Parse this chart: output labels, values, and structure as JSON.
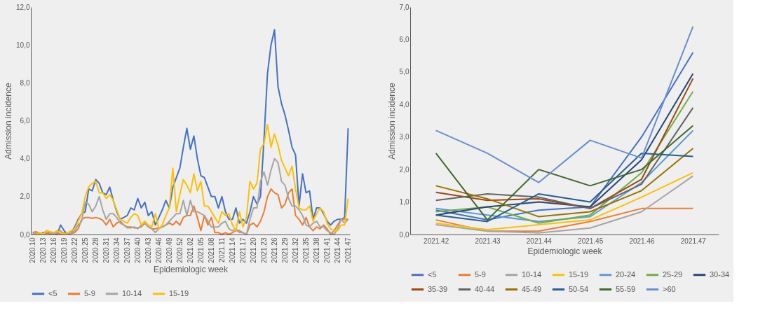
{
  "chart_data": [
    {
      "type": "line",
      "xlabel": "Epidemiologic week",
      "ylabel": "Admission incidence",
      "categories": [
        "2020.10",
        null,
        null,
        "2020.13",
        null,
        null,
        "2020.16",
        null,
        null,
        "2020.19",
        null,
        null,
        "2020.22",
        null,
        null,
        "2020.25",
        null,
        null,
        "2020.28",
        null,
        null,
        "2020.31",
        null,
        null,
        "2020.34",
        null,
        null,
        "2020.37",
        null,
        null,
        "2020.40",
        null,
        null,
        "2020.43",
        null,
        null,
        "2020.46",
        null,
        null,
        "2020.49",
        null,
        null,
        "2020.52",
        null,
        null,
        "2021.02",
        null,
        null,
        "2021.05",
        null,
        null,
        "2021.08",
        null,
        null,
        "2021.11",
        null,
        null,
        "2021.14",
        null,
        null,
        "2021.17",
        null,
        null,
        "2021.20",
        null,
        null,
        "2021.23",
        null,
        null,
        "2021.26",
        null,
        null,
        "2021.29",
        null,
        null,
        "2021.32",
        null,
        null,
        "2021.35",
        null,
        null,
        "2021.38",
        null,
        null,
        "2021.41",
        null,
        null,
        "2021.44",
        null,
        null,
        "2021.47"
      ],
      "series": [
        {
          "name": "<5",
          "color": "#4472c4",
          "values": [
            0.0,
            0.05,
            0.0,
            0.1,
            0.05,
            0.1,
            0.1,
            0.0,
            0.5,
            0.2,
            0.0,
            0.1,
            0.4,
            0.8,
            1.1,
            1.2,
            2.4,
            2.3,
            2.9,
            2.7,
            2.2,
            2.1,
            2.5,
            1.8,
            1.2,
            0.8,
            0.9,
            1.0,
            1.4,
            1.3,
            1.9,
            1.4,
            1.7,
            1.0,
            1.2,
            0.5,
            0.9,
            1.3,
            1.8,
            1.4,
            2.5,
            3.0,
            3.5,
            4.6,
            5.6,
            4.5,
            5.2,
            4.0,
            3.1,
            3.0,
            2.5,
            2.0,
            2.0,
            1.4,
            2.0,
            1.2,
            0.8,
            0.8,
            1.4,
            0.6,
            0.8,
            0.6,
            1.2,
            2.0,
            1.6,
            2.0,
            5.0,
            8.5,
            10.0,
            10.8,
            7.8,
            6.9,
            6.3,
            5.5,
            4.6,
            4.2,
            1.5,
            3.2,
            2.2,
            2.3,
            0.8,
            1.4,
            1.4,
            1.1,
            0.7,
            0.5,
            0.7,
            0.8,
            0.8,
            0.9,
            5.6
          ]
        },
        {
          "name": "5-9",
          "color": "#ed7d31",
          "values": [
            0.1,
            0.15,
            0.05,
            0.0,
            0.1,
            0.0,
            0.05,
            0.1,
            0.0,
            0.1,
            0.0,
            0.05,
            0.1,
            0.3,
            0.8,
            0.9,
            0.9,
            0.85,
            0.9,
            0.85,
            0.75,
            0.5,
            0.8,
            0.4,
            0.6,
            0.7,
            0.5,
            0.4,
            0.4,
            0.35,
            0.35,
            0.4,
            0.6,
            0.4,
            0.3,
            0.3,
            0.35,
            0.4,
            0.5,
            0.6,
            0.5,
            0.7,
            0.5,
            0.9,
            1.0,
            1.0,
            1.5,
            0.9,
            0.2,
            1.0,
            0.5,
            0.9,
            0.1,
            0.1,
            0.0,
            0.1,
            0.0,
            0.1,
            0.2,
            0.2,
            0.1,
            0.0,
            0.5,
            0.6,
            0.4,
            0.7,
            1.2,
            2.0,
            2.4,
            2.2,
            2.1,
            1.4,
            1.6,
            2.2,
            2.4,
            1.0,
            0.8,
            0.5,
            0.9,
            0.4,
            0.2,
            0.4,
            0.3,
            0.5,
            0.3,
            0.0,
            0.2,
            0.5,
            0.8,
            0.8,
            0.8
          ]
        },
        {
          "name": "10-14",
          "color": "#a5a5a5",
          "values": [
            0.0,
            0.1,
            0.0,
            0.05,
            0.2,
            0.1,
            0.0,
            0.1,
            0.2,
            0.0,
            0.0,
            0.1,
            0.2,
            0.5,
            0.7,
            1.7,
            1.6,
            1.2,
            1.5,
            2.0,
            1.3,
            0.8,
            1.1,
            1.1,
            0.9,
            0.6,
            0.5,
            0.35,
            0.35,
            0.4,
            0.3,
            0.5,
            0.6,
            0.4,
            0.3,
            0.1,
            0.3,
            0.4,
            0.5,
            0.7,
            0.9,
            1.1,
            1.1,
            1.8,
            1.0,
            1.8,
            1.2,
            1.2,
            1.1,
            1.0,
            0.7,
            0.4,
            0.4,
            0.4,
            0.6,
            0.7,
            0.3,
            0.2,
            0.3,
            0.1,
            0.1,
            0.0,
            0.8,
            1.4,
            1.4,
            2.8,
            3.3,
            2.6,
            3.4,
            4.0,
            3.8,
            2.8,
            2.6,
            1.9,
            1.5,
            1.5,
            1.3,
            1.0,
            0.5,
            0.4,
            0.6,
            0.7,
            0.4,
            0.4,
            0.2,
            0.1,
            0.0,
            0.3,
            0.8,
            0.6,
            0.8
          ]
        },
        {
          "name": "15-19",
          "color": "#ffc000",
          "values": [
            0.0,
            0.0,
            0.1,
            0.0,
            0.2,
            0.15,
            0.1,
            0.2,
            0.1,
            0.0,
            0.1,
            0.2,
            0.3,
            0.7,
            1.1,
            2.0,
            2.5,
            2.7,
            2.8,
            2.2,
            2.2,
            1.9,
            2.1,
            1.8,
            1.3,
            0.8,
            0.7,
            0.6,
            0.9,
            1.1,
            1.0,
            0.5,
            0.7,
            0.5,
            0.4,
            1.1,
            0.3,
            0.5,
            1.0,
            1.4,
            3.5,
            1.2,
            2.1,
            2.9,
            2.6,
            2.2,
            3.2,
            2.3,
            2.8,
            1.5,
            1.5,
            1.2,
            0.9,
            0.6,
            1.2,
            1.0,
            1.1,
            0.5,
            0.2,
            1.2,
            0.4,
            0.9,
            2.8,
            2.4,
            2.7,
            4.5,
            4.8,
            5.8,
            4.6,
            5.3,
            4.7,
            3.9,
            3.5,
            3.1,
            3.6,
            2.4,
            1.4,
            1.3,
            1.3,
            1.5,
            0.7,
            1.1,
            1.4,
            1.2,
            0.6,
            0.3,
            0.2,
            0.2,
            0.5,
            0.5,
            1.9
          ]
        }
      ],
      "ylim": [
        0,
        12
      ],
      "yticks": [
        {
          "value": 0,
          "label": "0,0"
        },
        {
          "value": 2,
          "label": "2,0"
        },
        {
          "value": 4,
          "label": "4,0"
        },
        {
          "value": 6,
          "label": "6,0"
        },
        {
          "value": 8,
          "label": "8,0"
        },
        {
          "value": 10,
          "label": "10,0"
        },
        {
          "value": 12,
          "label": "12,0"
        }
      ],
      "grid": false,
      "legend": "bottom"
    },
    {
      "type": "line",
      "xlabel": "Epidemiologic week",
      "ylabel": "Admission incidence",
      "categories": [
        "2021.42",
        "2021.43",
        "2021.44",
        "2021.45",
        "2021.46",
        "2021.47"
      ],
      "series": [
        {
          "name": "<5",
          "color": "#4472c4",
          "values": [
            0.75,
            0.45,
            0.75,
            0.85,
            3.0,
            5.6
          ]
        },
        {
          "name": "5-9",
          "color": "#ed7d31",
          "values": [
            0.45,
            0.1,
            0.1,
            0.4,
            0.8,
            0.8
          ]
        },
        {
          "name": "10-14",
          "color": "#a5a5a5",
          "values": [
            0.3,
            0.1,
            0.05,
            0.2,
            0.7,
            1.8
          ]
        },
        {
          "name": "15-19",
          "color": "#ffc000",
          "values": [
            0.35,
            0.15,
            0.3,
            0.45,
            1.15,
            1.9
          ]
        },
        {
          "name": "20-24",
          "color": "#5b9bd5",
          "values": [
            0.8,
            0.6,
            0.4,
            0.55,
            1.6,
            3.2
          ]
        },
        {
          "name": "25-29",
          "color": "#70ad47",
          "values": [
            0.7,
            0.85,
            0.35,
            0.6,
            1.9,
            4.4
          ]
        },
        {
          "name": "30-34",
          "color": "#264478",
          "values": [
            0.6,
            0.85,
            1.0,
            0.85,
            2.3,
            4.95
          ]
        },
        {
          "name": "35-39",
          "color": "#9e480e",
          "values": [
            1.3,
            1.05,
            1.1,
            0.8,
            1.7,
            4.8
          ]
        },
        {
          "name": "40-44",
          "color": "#636363",
          "values": [
            1.05,
            1.25,
            1.15,
            0.8,
            1.55,
            3.9
          ]
        },
        {
          "name": "45-49",
          "color": "#997300",
          "values": [
            1.5,
            1.1,
            0.55,
            0.7,
            1.35,
            2.65
          ]
        },
        {
          "name": "50-54",
          "color": "#255e91",
          "values": [
            0.6,
            0.4,
            1.25,
            1.0,
            2.5,
            2.4
          ]
        },
        {
          "name": "55-59",
          "color": "#43682b",
          "values": [
            2.5,
            0.45,
            2.0,
            1.5,
            2.0,
            3.35
          ]
        },
        {
          "name": ">60",
          "color": "#698ed0",
          "values": [
            3.2,
            2.5,
            1.6,
            2.9,
            2.35,
            6.4
          ]
        }
      ],
      "ylim": [
        0,
        7
      ],
      "yticks": [
        {
          "value": 0,
          "label": "0,0"
        },
        {
          "value": 1,
          "label": "1,0"
        },
        {
          "value": 2,
          "label": "2,0"
        },
        {
          "value": 3,
          "label": "3,0"
        },
        {
          "value": 4,
          "label": "4,0"
        },
        {
          "value": 5,
          "label": "5,0"
        },
        {
          "value": 6,
          "label": "6,0"
        },
        {
          "value": 7,
          "label": "7,0"
        }
      ],
      "grid": false,
      "legend": "bottom"
    }
  ]
}
